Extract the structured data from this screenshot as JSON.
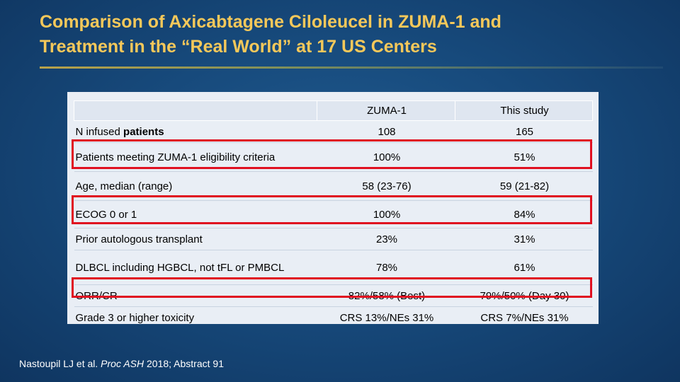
{
  "slide": {
    "title_line1": "Comparison of Axicabtagene Ciloleucel in ZUMA-1 and",
    "title_line2": "Treatment in the “Real World” at 17 US Centers",
    "citation_pre": "Nastoupil LJ et al. ",
    "citation_journal": "Proc ASH",
    "citation_post": " 2018; Abstract 91"
  },
  "table": {
    "headers": [
      "",
      "ZUMA-1",
      "This study"
    ],
    "rows": [
      {
        "label": "N infused ",
        "label_bold": "patients",
        "zuma": "108",
        "study": "165"
      },
      {
        "label": "Patients meeting ZUMA-1 eligibility criteria",
        "zuma": "100%",
        "study": "51%"
      },
      {
        "label": "Age, median (range)",
        "zuma": "58 (23-76)",
        "study": "59 (21-82)"
      },
      {
        "label": "ECOG 0 or 1",
        "zuma": "100%",
        "study": "84%"
      },
      {
        "label": "Prior autologous transplant",
        "zuma": "23%",
        "study": "31%"
      },
      {
        "label": "DLBCL including HGBCL, not tFL or PMBCL",
        "zuma": "78%",
        "study": "61%"
      },
      {
        "label": "ORR/CR",
        "zuma": "82%/58% (Best)",
        "study": "79%/50% (Day 30)"
      },
      {
        "label": "Grade 3 or higher toxicity",
        "zuma": "CRS 13%/NEs 31%",
        "study": "CRS 7%/NEs 31%"
      }
    ]
  },
  "colors": {
    "title": "#f5c85a",
    "highlight_box": "#e01020",
    "background": "#174a7c"
  }
}
